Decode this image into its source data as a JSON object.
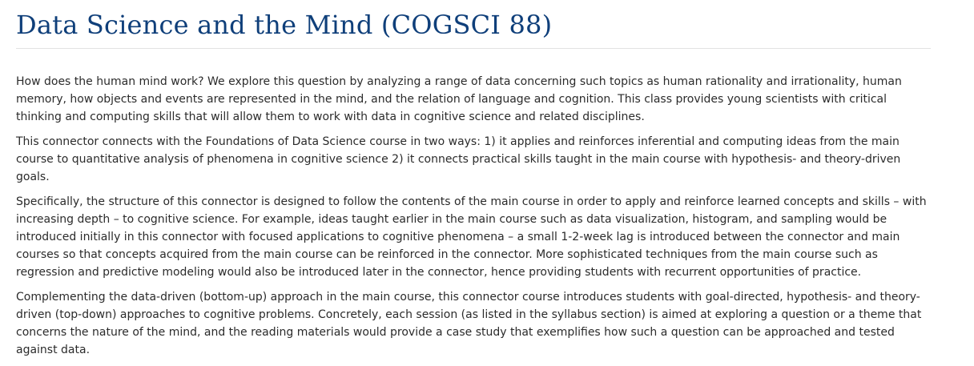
{
  "page": {
    "title": "Data Science and the Mind (COGSCI 88)",
    "paragraphs": [
      "How does the human mind work? We explore this question by analyzing a range of data concerning such topics as human rationality and irrationality, human memory, how objects and events are represented in the mind, and the relation of language and cognition. This class provides young scientists with critical thinking and computing skills that will allow them to work with data in cognitive science and related disciplines.",
      "This connector connects with the Foundations of Data Science course in two ways: 1) it applies and reinforces inferential and computing ideas from the main course to quantitative analysis of phenomena in cognitive science 2) it connects practical skills taught in the main course with hypothesis- and theory-driven goals.",
      "Specifically, the structure of this connector is designed to follow the contents of the main course in order to apply and reinforce learned concepts and skills – with increasing depth – to cognitive science. For example, ideas taught earlier in the main course such as data visualization, histogram, and sampling would be introduced initially in this connector with focused applications to cognitive phenomena – a small 1-2-week lag is introduced between the connector and main courses so that concepts acquired from the main course can be reinforced in the connector. More sophisticated techniques from the main course such as regression and predictive modeling would also be introduced later in the connector, hence providing students with recurrent opportunities of practice.",
      "Complementing the data-driven (bottom-up) approach in the main course, this connector course introduces students with goal-directed, hypothesis- and theory-driven (top-down) approaches to cognitive problems. Concretely, each session (as listed in the syllabus section) is aimed at exploring a question or a theme that concerns the nature of the mind, and the reading materials would provide a case study that exemplifies how such a question can be approached and tested against data."
    ]
  },
  "colors": {
    "title": "#0f3f7a",
    "text": "#2b2b2b",
    "rule": "#e2e2e2",
    "background": "#ffffff"
  }
}
